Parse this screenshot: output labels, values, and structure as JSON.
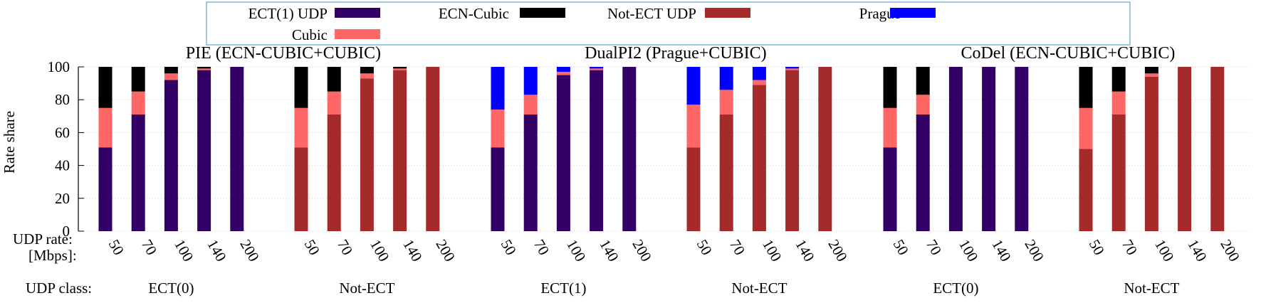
{
  "chart_data": {
    "type": "bar",
    "stacked": true,
    "ylabel": "Rate share",
    "ylim": [
      0,
      100
    ],
    "yticks": [
      0,
      20,
      40,
      60,
      80,
      100
    ],
    "grid": true,
    "legend_position": "top",
    "row_labels": {
      "rate_line1": "UDP rate:",
      "rate_line2": "[Mbps]:",
      "class": "UDP class:"
    },
    "legend": [
      {
        "key": "ect1_udp",
        "label": "ECT(1) UDP",
        "color": "#330066"
      },
      {
        "key": "ecn_cubic",
        "label": "ECN-Cubic",
        "color": "#000000"
      },
      {
        "key": "notect_udp",
        "label": "Not-ECT UDP",
        "color": "#a52a2a"
      },
      {
        "key": "prague",
        "label": "Prague",
        "color": "#0000ff"
      },
      {
        "key": "cubic",
        "label": "Cubic",
        "color": "#ff6666"
      }
    ],
    "panels": [
      {
        "title": "PIE (ECN-CUBIC+CUBIC)",
        "groups": [
          {
            "class": "ECT(0)",
            "rates": [
              "50",
              "70",
              "100",
              "140",
              "200"
            ],
            "stacks": [
              [
                {
                  "s": "ect1_udp",
                  "v": 51
                },
                {
                  "s": "cubic",
                  "v": 24
                },
                {
                  "s": "ecn_cubic",
                  "v": 25
                }
              ],
              [
                {
                  "s": "ect1_udp",
                  "v": 71
                },
                {
                  "s": "cubic",
                  "v": 14
                },
                {
                  "s": "ecn_cubic",
                  "v": 15
                }
              ],
              [
                {
                  "s": "ect1_udp",
                  "v": 92
                },
                {
                  "s": "cubic",
                  "v": 4
                },
                {
                  "s": "ecn_cubic",
                  "v": 4
                }
              ],
              [
                {
                  "s": "ect1_udp",
                  "v": 98
                },
                {
                  "s": "cubic",
                  "v": 1
                },
                {
                  "s": "ecn_cubic",
                  "v": 1
                }
              ],
              [
                {
                  "s": "ect1_udp",
                  "v": 100
                }
              ]
            ]
          },
          {
            "class": "Not-ECT",
            "rates": [
              "50",
              "70",
              "100",
              "140",
              "200"
            ],
            "stacks": [
              [
                {
                  "s": "notect_udp",
                  "v": 51
                },
                {
                  "s": "cubic",
                  "v": 24
                },
                {
                  "s": "ecn_cubic",
                  "v": 25
                }
              ],
              [
                {
                  "s": "notect_udp",
                  "v": 71
                },
                {
                  "s": "cubic",
                  "v": 14
                },
                {
                  "s": "ecn_cubic",
                  "v": 15
                }
              ],
              [
                {
                  "s": "notect_udp",
                  "v": 93
                },
                {
                  "s": "cubic",
                  "v": 3
                },
                {
                  "s": "ecn_cubic",
                  "v": 4
                }
              ],
              [
                {
                  "s": "notect_udp",
                  "v": 98
                },
                {
                  "s": "cubic",
                  "v": 1
                },
                {
                  "s": "ecn_cubic",
                  "v": 1
                }
              ],
              [
                {
                  "s": "notect_udp",
                  "v": 100
                }
              ]
            ]
          }
        ]
      },
      {
        "title": "DualPI2 (Prague+CUBIC)",
        "groups": [
          {
            "class": "ECT(1)",
            "rates": [
              "50",
              "70",
              "100",
              "140",
              "200"
            ],
            "stacks": [
              [
                {
                  "s": "ect1_udp",
                  "v": 51
                },
                {
                  "s": "cubic",
                  "v": 23
                },
                {
                  "s": "prague",
                  "v": 26
                }
              ],
              [
                {
                  "s": "ect1_udp",
                  "v": 71
                },
                {
                  "s": "cubic",
                  "v": 12
                },
                {
                  "s": "prague",
                  "v": 17
                }
              ],
              [
                {
                  "s": "ect1_udp",
                  "v": 95
                },
                {
                  "s": "cubic",
                  "v": 2
                },
                {
                  "s": "prague",
                  "v": 3
                }
              ],
              [
                {
                  "s": "ect1_udp",
                  "v": 98
                },
                {
                  "s": "cubic",
                  "v": 1
                },
                {
                  "s": "prague",
                  "v": 1
                }
              ],
              [
                {
                  "s": "ect1_udp",
                  "v": 100
                }
              ]
            ]
          },
          {
            "class": "Not-ECT",
            "rates": [
              "50",
              "70",
              "100",
              "140",
              "200"
            ],
            "stacks": [
              [
                {
                  "s": "notect_udp",
                  "v": 51
                },
                {
                  "s": "cubic",
                  "v": 26
                },
                {
                  "s": "prague",
                  "v": 23
                }
              ],
              [
                {
                  "s": "notect_udp",
                  "v": 71
                },
                {
                  "s": "cubic",
                  "v": 15
                },
                {
                  "s": "prague",
                  "v": 14
                }
              ],
              [
                {
                  "s": "notect_udp",
                  "v": 89
                },
                {
                  "s": "cubic",
                  "v": 3
                },
                {
                  "s": "prague",
                  "v": 8
                }
              ],
              [
                {
                  "s": "notect_udp",
                  "v": 98
                },
                {
                  "s": "cubic",
                  "v": 1
                },
                {
                  "s": "prague",
                  "v": 1
                }
              ],
              [
                {
                  "s": "notect_udp",
                  "v": 100
                }
              ]
            ]
          }
        ]
      },
      {
        "title": "CoDel (ECN-CUBIC+CUBIC)",
        "groups": [
          {
            "class": "ECT(0)",
            "rates": [
              "50",
              "70",
              "100",
              "140",
              "200"
            ],
            "stacks": [
              [
                {
                  "s": "ect1_udp",
                  "v": 51
                },
                {
                  "s": "cubic",
                  "v": 24
                },
                {
                  "s": "ecn_cubic",
                  "v": 25
                }
              ],
              [
                {
                  "s": "ect1_udp",
                  "v": 71
                },
                {
                  "s": "cubic",
                  "v": 12
                },
                {
                  "s": "ecn_cubic",
                  "v": 17
                }
              ],
              [
                {
                  "s": "ect1_udp",
                  "v": 100
                }
              ],
              [
                {
                  "s": "ect1_udp",
                  "v": 100
                }
              ],
              [
                {
                  "s": "ect1_udp",
                  "v": 100
                }
              ]
            ]
          },
          {
            "class": "Not-ECT",
            "rates": [
              "50",
              "70",
              "100",
              "140",
              "200"
            ],
            "stacks": [
              [
                {
                  "s": "notect_udp",
                  "v": 50
                },
                {
                  "s": "cubic",
                  "v": 25
                },
                {
                  "s": "ecn_cubic",
                  "v": 25
                }
              ],
              [
                {
                  "s": "notect_udp",
                  "v": 71
                },
                {
                  "s": "cubic",
                  "v": 14
                },
                {
                  "s": "ecn_cubic",
                  "v": 15
                }
              ],
              [
                {
                  "s": "notect_udp",
                  "v": 94
                },
                {
                  "s": "cubic",
                  "v": 2
                },
                {
                  "s": "ecn_cubic",
                  "v": 4
                }
              ],
              [
                {
                  "s": "notect_udp",
                  "v": 100
                }
              ],
              [
                {
                  "s": "notect_udp",
                  "v": 100
                }
              ]
            ]
          }
        ]
      }
    ]
  }
}
